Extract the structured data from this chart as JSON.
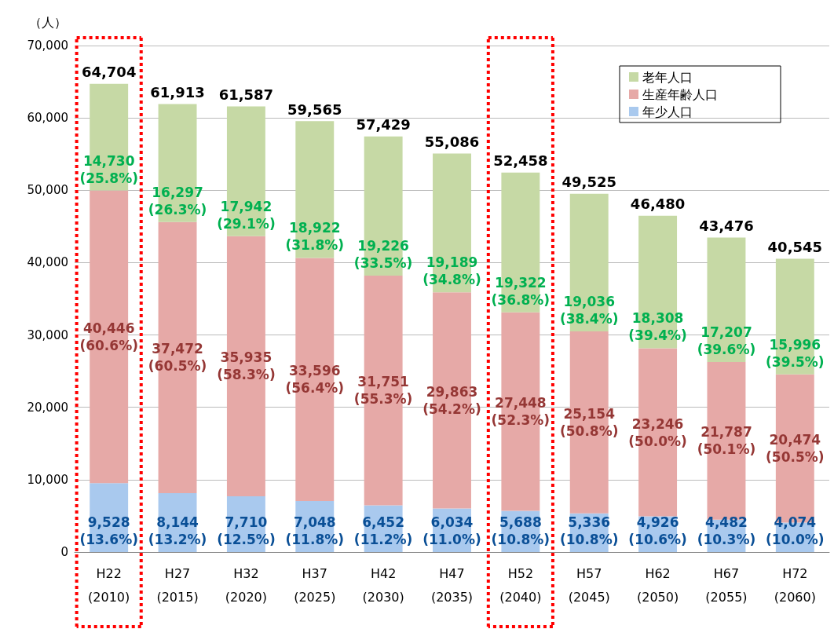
{
  "chart_data": {
    "type": "bar",
    "stacked": true,
    "ylabel": "（人）",
    "categories": [
      "H22\n(2010)",
      "H27\n(2015)",
      "H32\n(2020)",
      "H37\n(2025)",
      "H42\n(2030)",
      "H47\n(2035)",
      "H52\n(2040)",
      "H57\n(2045)",
      "H62\n(2050)",
      "H67\n(2055)",
      "H72\n(2060)"
    ],
    "series": [
      {
        "name": "年少人口",
        "color": "#a9c9ee",
        "values": [
          9528,
          8144,
          7710,
          7048,
          6452,
          6034,
          5688,
          5336,
          4926,
          4482,
          4074
        ],
        "value_labels": [
          "9,528\n(13.6%)",
          "8,144\n(13.2%)",
          "7,710\n(12.5%)",
          "7,048\n(11.8%)",
          "6,452\n(11.2%)",
          "6,034\n(11.0%)",
          "5,688\n(10.8%)",
          "5,336\n(10.8%)",
          "4,926\n(10.6%)",
          "4,482\n(10.3%)",
          "4,074\n(10.0%)"
        ]
      },
      {
        "name": "生産年齢人口",
        "color": "#e6a9a7",
        "values": [
          40446,
          37472,
          35935,
          33596,
          31751,
          29863,
          27448,
          25154,
          23246,
          21787,
          20474
        ],
        "value_labels": [
          "40,446\n(60.6%)",
          "37,472\n(60.5%)",
          "35,935\n(58.3%)",
          "33,596\n(56.4%)",
          "31,751\n(55.3%)",
          "29,863\n(54.2%)",
          "27,448\n(52.3%)",
          "25,154\n(50.8%)",
          "23,246\n(50.0%)",
          "21,787\n(50.1%)",
          "20,474\n(50.5%)"
        ]
      },
      {
        "name": "老年人口",
        "color": "#c6d9a5",
        "values": [
          14730,
          16297,
          17942,
          18922,
          19226,
          19189,
          19322,
          19036,
          18308,
          17207,
          15996
        ],
        "value_labels": [
          "14,730\n(25.8%)",
          "16,297\n(26.3%)",
          "17,942\n(29.1%)",
          "18,922\n(31.8%)",
          "19,226\n(33.5%)",
          "19,189\n(34.8%)",
          "19,322\n(36.8%)",
          "19,036\n(38.4%)",
          "18,308\n(39.4%)",
          "17,207\n(39.6%)",
          "15,996\n(39.5%)"
        ]
      }
    ],
    "totals": [
      "64,704",
      "61,913",
      "61,587",
      "59,565",
      "57,429",
      "55,086",
      "52,458",
      "49,525",
      "46,480",
      "43,476",
      "40,545"
    ],
    "ylim": [
      0,
      70000
    ],
    "yticks": [
      0,
      {
        "value": 10000,
        "label": "10,000"
      },
      {
        "value": 20000,
        "label": "20,000"
      },
      {
        "value": 30000,
        "label": "30,000"
      },
      {
        "value": 40000,
        "label": "40,000"
      },
      {
        "value": 50000,
        "label": "50,000"
      },
      {
        "value": 60000,
        "label": "60,000"
      },
      {
        "value": 70000,
        "label": "70,000"
      }
    ],
    "grid": "y",
    "legend": "top right"
  }
}
